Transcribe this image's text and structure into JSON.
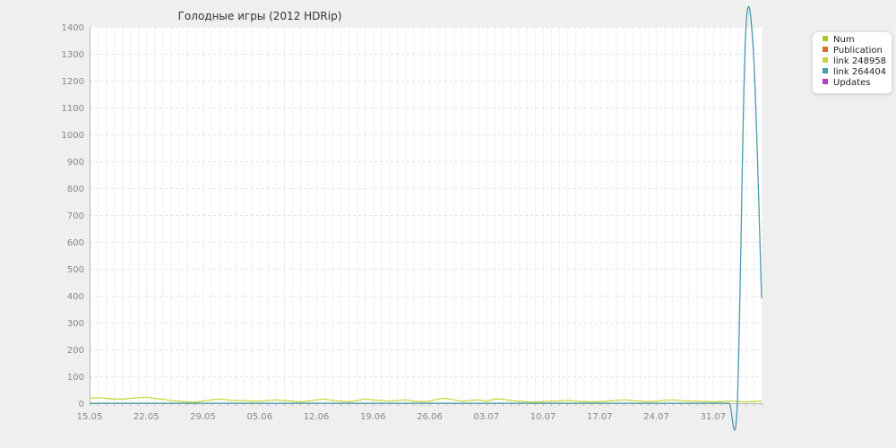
{
  "chart_data": {
    "type": "line",
    "title": "Голодные игры (2012 HDRip)",
    "xlabel": "",
    "ylabel": "",
    "ylim": [
      0,
      1400
    ],
    "yticks": [
      0,
      100,
      200,
      300,
      400,
      500,
      600,
      700,
      800,
      900,
      1000,
      1100,
      1200,
      1300,
      1400
    ],
    "xticks": [
      "15.05",
      "22.05",
      "29.05",
      "05.06",
      "12.06",
      "19.06",
      "26.06",
      "03.07",
      "10.07",
      "17.07",
      "24.07",
      "31.07"
    ],
    "x_days": 83,
    "grid": true,
    "legend_position": "top-right",
    "series": [
      {
        "name": "Num",
        "color": "#a8c82a",
        "values": []
      },
      {
        "name": "Publication",
        "color": "#e06a2a",
        "values": []
      },
      {
        "name": "link 248958",
        "color": "#cad63a",
        "values": [
          18,
          20,
          18,
          16,
          15,
          18,
          20,
          22,
          18,
          15,
          10,
          8,
          5,
          4,
          8,
          12,
          15,
          12,
          10,
          10,
          8,
          8,
          10,
          12,
          10,
          8,
          5,
          8,
          12,
          15,
          10,
          8,
          6,
          10,
          15,
          12,
          10,
          8,
          10,
          12,
          8,
          6,
          8,
          15,
          18,
          12,
          8,
          10,
          12,
          8,
          15,
          15,
          10,
          8,
          5,
          4,
          6,
          8,
          8,
          10,
          8,
          6,
          5,
          6,
          8,
          10,
          12,
          10,
          8,
          6,
          8,
          10,
          12,
          10,
          8,
          8,
          6,
          5,
          6,
          8,
          6,
          5,
          6,
          8
        ]
      },
      {
        "name": "link 264404",
        "color": "#4a9aaa",
        "values": [
          0,
          0,
          0,
          0,
          0,
          0,
          0,
          0,
          0,
          0,
          0,
          0,
          0,
          0,
          0,
          0,
          0,
          0,
          0,
          0,
          0,
          0,
          0,
          0,
          0,
          0,
          0,
          0,
          0,
          0,
          0,
          0,
          0,
          0,
          0,
          0,
          0,
          0,
          0,
          0,
          0,
          0,
          0,
          0,
          0,
          0,
          0,
          0,
          0,
          0,
          0,
          0,
          0,
          0,
          0,
          0,
          0,
          0,
          0,
          0,
          0,
          0,
          0,
          0,
          0,
          0,
          0,
          0,
          0,
          0,
          0,
          0,
          0,
          0,
          0,
          0,
          0,
          0,
          0,
          0,
          0,
          1355,
          1300,
          390
        ]
      },
      {
        "name": "Updates",
        "color": "#b93cc4",
        "values": []
      }
    ]
  }
}
